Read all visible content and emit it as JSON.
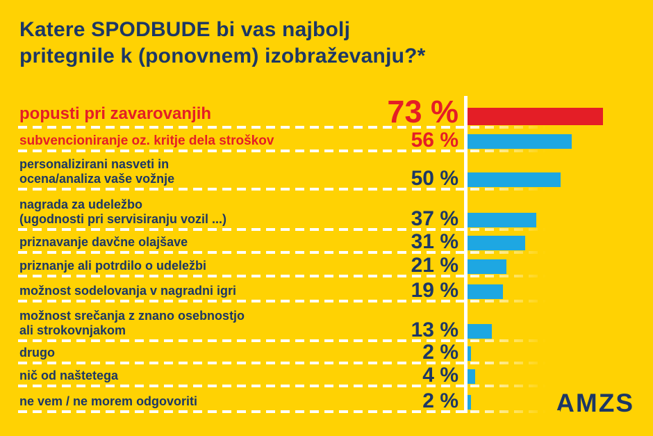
{
  "title": {
    "line1": "Katere SPODBUDE bi vas najbolj",
    "line2": "pritegnile k (ponovnem) izobraževanju?*"
  },
  "logo": {
    "text": "AMZS"
  },
  "colors": {
    "background": "#FFD203",
    "navy": "#1C3765",
    "red": "#E41E26",
    "blue": "#1EA7E2",
    "white": "#FFFFFF"
  },
  "chart_data": {
    "type": "bar",
    "orientation": "horizontal",
    "title": "Katere SPODBUDE bi vas najbolj pritegnile k (ponovnem) izobraževanju?*",
    "unit": "%",
    "value_axis_range": [
      0,
      100
    ],
    "grid": "dashed-row-separators",
    "categories": [
      "popusti pri zavarovanjih",
      "subvencioniranje oz. kritje dela stroškov",
      "personalizirani nasveti in ocena/analiza vaše vožnje",
      "nagrada za udeležbo (ugodnosti pri servisiranju vozil ...)",
      "priznavanje davčne olajšave",
      "priznanje ali potrdilo o udeležbi",
      "možnost sodelovanja v nagradni igri",
      "možnost srečanja z znano osebnostjo ali strokovnjakom",
      "drugo",
      "nič od naštetega",
      "ne vem / ne morem odgovoriti"
    ],
    "values": [
      73,
      56,
      50,
      37,
      31,
      21,
      19,
      13,
      2,
      4,
      2
    ],
    "rows": [
      {
        "label_lines": [
          "popusti pri zavarovanjih"
        ],
        "value": 73,
        "value_label": "73 %",
        "emphasis": "primary"
      },
      {
        "label_lines": [
          "subvencioniranje oz. kritje dela stroškov"
        ],
        "value": 56,
        "value_label": "56 %",
        "emphasis": "secondary"
      },
      {
        "label_lines": [
          "personalizirani nasveti in",
          "ocena/analiza vaše vožnje"
        ],
        "value": 50,
        "value_label": "50 %",
        "emphasis": "normal"
      },
      {
        "label_lines": [
          "nagrada za udeležbo",
          "(ugodnosti pri servisiranju vozil ...)"
        ],
        "value": 37,
        "value_label": "37 %",
        "emphasis": "normal"
      },
      {
        "label_lines": [
          "priznavanje davčne olajšave"
        ],
        "value": 31,
        "value_label": "31 %",
        "emphasis": "normal"
      },
      {
        "label_lines": [
          "priznanje ali potrdilo o udeležbi"
        ],
        "value": 21,
        "value_label": "21 %",
        "emphasis": "normal"
      },
      {
        "label_lines": [
          "možnost sodelovanja v nagradni igri"
        ],
        "value": 19,
        "value_label": "19 %",
        "emphasis": "normal"
      },
      {
        "label_lines": [
          "možnost srečanja z znano osebnostjo",
          "ali strokovnjakom"
        ],
        "value": 13,
        "value_label": "13 %",
        "emphasis": "normal"
      },
      {
        "label_lines": [
          "drugo"
        ],
        "value": 2,
        "value_label": "2 %",
        "emphasis": "normal"
      },
      {
        "label_lines": [
          "nič od naštetega"
        ],
        "value": 4,
        "value_label": "4 %",
        "emphasis": "normal"
      },
      {
        "label_lines": [
          "ne vem / ne morem odgovoriti"
        ],
        "value": 2,
        "value_label": "2 %",
        "emphasis": "normal"
      }
    ]
  }
}
